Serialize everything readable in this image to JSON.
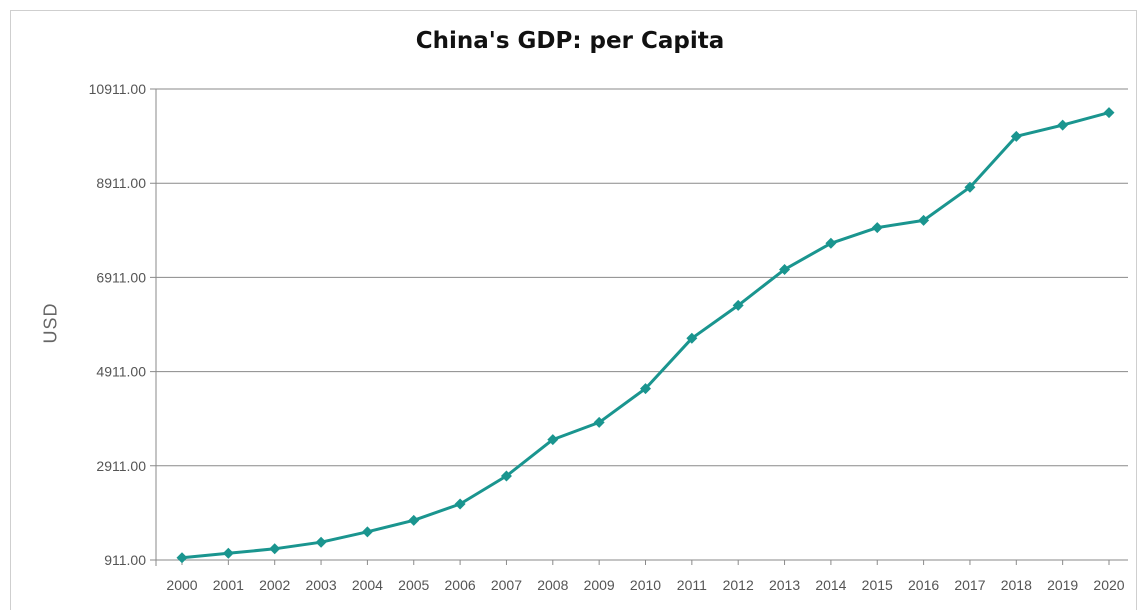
{
  "chart_data": {
    "type": "line",
    "title": "China's GDP: per Capita",
    "xlabel": "",
    "ylabel": "USD",
    "x": [
      "2000",
      "2001",
      "2002",
      "2003",
      "2004",
      "2005",
      "2006",
      "2007",
      "2008",
      "2009",
      "2010",
      "2011",
      "2012",
      "2013",
      "2014",
      "2015",
      "2016",
      "2017",
      "2018",
      "2019",
      "2020"
    ],
    "series": [
      {
        "values": [
          959,
          1053,
          1149,
          1289,
          1509,
          1753,
          2099,
          2694,
          3468,
          3832,
          4550,
          5618,
          6317,
          7080,
          7636,
          7969,
          8122,
          8826,
          9906,
          10144,
          10409
        ]
      }
    ],
    "yticks": [
      "911.00",
      "2911.00",
      "4911.00",
      "6911.00",
      "8911.00",
      "10911.00"
    ],
    "ylim": [
      911,
      10911
    ],
    "grid": "horizontal",
    "colors": {
      "line": "#1a958f",
      "grid": "#8a8a8a",
      "axis": "#8a8a8a"
    }
  }
}
